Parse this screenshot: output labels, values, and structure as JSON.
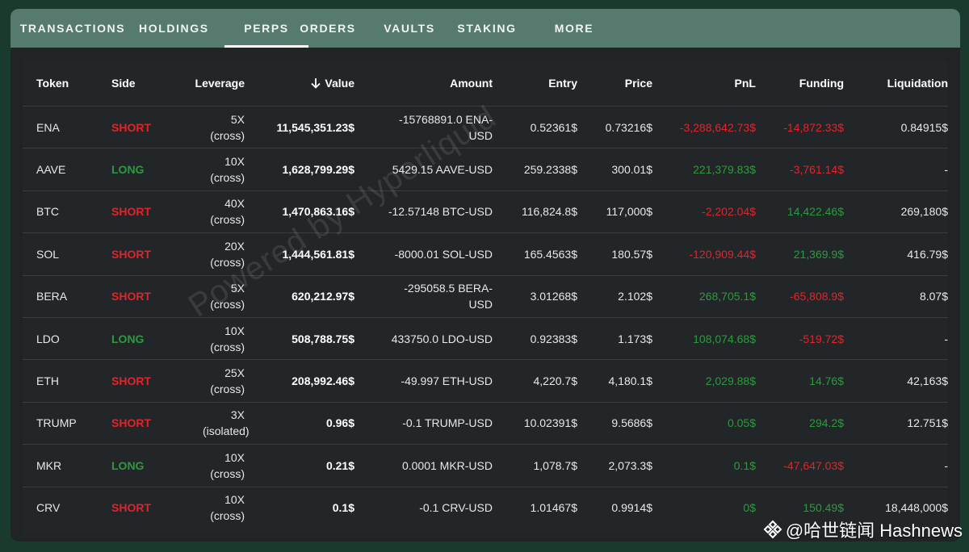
{
  "tabs": [
    {
      "label": "TRANSACTIONS",
      "active": false
    },
    {
      "label": "HOLDINGS",
      "active": false
    },
    {
      "label": "PERPS",
      "active": true
    },
    {
      "label": "ORDERS",
      "active": false
    },
    {
      "label": "VAULTS",
      "active": false
    },
    {
      "label": "STAKING",
      "active": false
    },
    {
      "label": "MORE",
      "active": false
    }
  ],
  "table": {
    "headers": {
      "token": "Token",
      "side": "Side",
      "leverage": "Leverage",
      "value": "Value",
      "amount": "Amount",
      "entry": "Entry",
      "price": "Price",
      "pnl": "PnL",
      "funding": "Funding",
      "liquidation": "Liquidation"
    },
    "rows": [
      {
        "token": "ENA",
        "side": "SHORT",
        "leverage": "5X (cross)",
        "value": "11,545,351.23$",
        "amount": "-15768891.0 ENA-USD",
        "entry": "0.52361$",
        "price": "0.73216$",
        "pnl": "-3,288,642.73$",
        "funding": "-14,872.33$",
        "liquidation": "0.84915$"
      },
      {
        "token": "AAVE",
        "side": "LONG",
        "leverage": "10X (cross)",
        "value": "1,628,799.29$",
        "amount": "5429.15 AAVE-USD",
        "entry": "259.2338$",
        "price": "300.01$",
        "pnl": "221,379.83$",
        "funding": "-3,761.14$",
        "liquidation": "-"
      },
      {
        "token": "BTC",
        "side": "SHORT",
        "leverage": "40X (cross)",
        "value": "1,470,863.16$",
        "amount": "-12.57148 BTC-USD",
        "entry": "116,824.8$",
        "price": "117,000$",
        "pnl": "-2,202.04$",
        "funding": "14,422.46$",
        "liquidation": "269,180$"
      },
      {
        "token": "SOL",
        "side": "SHORT",
        "leverage": "20X (cross)",
        "value": "1,444,561.81$",
        "amount": "-8000.01 SOL-USD",
        "entry": "165.4563$",
        "price": "180.57$",
        "pnl": "-120,909.44$",
        "funding": "21,369.9$",
        "liquidation": "416.79$"
      },
      {
        "token": "BERA",
        "side": "SHORT",
        "leverage": "5X (cross)",
        "value": "620,212.97$",
        "amount": "-295058.5 BERA-USD",
        "entry": "3.01268$",
        "price": "2.102$",
        "pnl": "268,705.1$",
        "funding": "-65,808.9$",
        "liquidation": "8.07$"
      },
      {
        "token": "LDO",
        "side": "LONG",
        "leverage": "10X (cross)",
        "value": "508,788.75$",
        "amount": "433750.0 LDO-USD",
        "entry": "0.92383$",
        "price": "1.173$",
        "pnl": "108,074.68$",
        "funding": "-519.72$",
        "liquidation": "-"
      },
      {
        "token": "ETH",
        "side": "SHORT",
        "leverage": "25X (cross)",
        "value": "208,992.46$",
        "amount": "-49.997 ETH-USD",
        "entry": "4,220.7$",
        "price": "4,180.1$",
        "pnl": "2,029.88$",
        "funding": "14.76$",
        "liquidation": "42,163$"
      },
      {
        "token": "TRUMP",
        "side": "SHORT",
        "leverage": "3X (isolated)",
        "value": "0.96$",
        "amount": "-0.1 TRUMP-USD",
        "entry": "10.02391$",
        "price": "9.5686$",
        "pnl": "0.05$",
        "funding": "294.2$",
        "liquidation": "12.751$"
      },
      {
        "token": "MKR",
        "side": "LONG",
        "leverage": "10X (cross)",
        "value": "0.21$",
        "amount": "0.0001 MKR-USD",
        "entry": "1,078.7$",
        "price": "2,073.3$",
        "pnl": "0.1$",
        "funding": "-47,647.03$",
        "liquidation": "-"
      },
      {
        "token": "CRV",
        "side": "SHORT",
        "leverage": "10X (cross)",
        "value": "0.1$",
        "amount": "-0.1 CRV-USD",
        "entry": "1.01467$",
        "price": "0.9914$",
        "pnl": "0$",
        "funding": "150.49$",
        "liquidation": "18,448,000$"
      }
    ]
  },
  "watermark": "Powered by Hyperliquid",
  "credit": {
    "icon": "binance-diamond-icon",
    "text": "@哈世链闻 Hashnews"
  },
  "colors": {
    "background": "#1a3a2e",
    "tabbar": "#567a6e",
    "panel": "#232629",
    "negative": "#e0242a",
    "positive": "#2c9a3c"
  }
}
